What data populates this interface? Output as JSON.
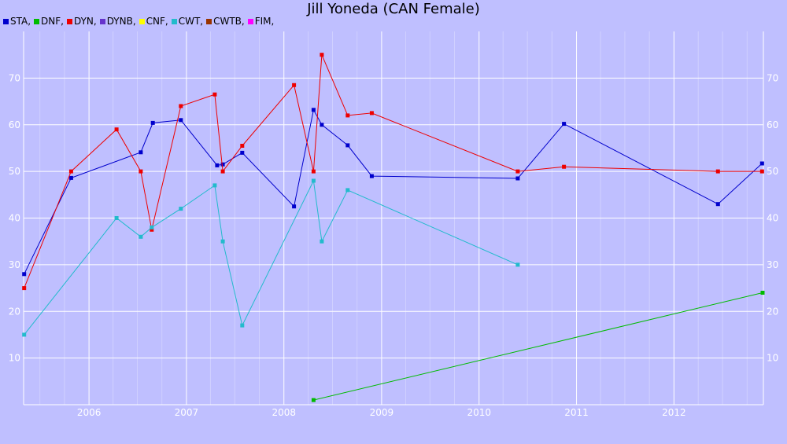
{
  "chart_data": {
    "type": "line",
    "title": "Jill Yoneda (CAN Female)",
    "xlabel": "",
    "ylabel": "",
    "x_ticks": [
      "2006",
      "2007",
      "2008",
      "2009",
      "2010",
      "2011",
      "2012"
    ],
    "y_ticks": [
      "10",
      "20",
      "30",
      "40",
      "50",
      "60",
      "70"
    ],
    "xlim": [
      "2005-05-01",
      "2012-12-01"
    ],
    "ylim": [
      0,
      80
    ],
    "grid": true,
    "legend_position": "top-left",
    "legend": [
      {
        "label": "STA,",
        "color": "#0000cc"
      },
      {
        "label": "DNF,",
        "color": "#00bb00"
      },
      {
        "label": "DYN,",
        "color": "#ee0000"
      },
      {
        "label": "DYNB,",
        "color": "#6633cc"
      },
      {
        "label": "CNF,",
        "color": "#ffff00"
      },
      {
        "label": "CWT,",
        "color": "#22bbcc"
      },
      {
        "label": "CWTB,",
        "color": "#993300"
      },
      {
        "label": "FIM,",
        "color": "#ff00ff"
      }
    ],
    "series": [
      {
        "name": "STA",
        "color": "#0000cc",
        "points": [
          {
            "x": "2005-05-03",
            "y": 28
          },
          {
            "x": "2005-10-26",
            "y": 48.6
          },
          {
            "x": "2006-07-14",
            "y": 54.1
          },
          {
            "x": "2006-08-28",
            "y": 60.4
          },
          {
            "x": "2006-12-11",
            "y": 61
          },
          {
            "x": "2007-04-26",
            "y": 51.3
          },
          {
            "x": "2007-05-17",
            "y": 51.5
          },
          {
            "x": "2007-07-29",
            "y": 54
          },
          {
            "x": "2008-02-08",
            "y": 42.5
          },
          {
            "x": "2008-04-21",
            "y": 63.2
          },
          {
            "x": "2008-05-22",
            "y": 60
          },
          {
            "x": "2008-08-27",
            "y": 55.6
          },
          {
            "x": "2008-11-25",
            "y": 49
          },
          {
            "x": "2010-05-26",
            "y": 48.5
          },
          {
            "x": "2010-11-15",
            "y": 60.2
          },
          {
            "x": "2012-06-14",
            "y": 43
          },
          {
            "x": "2012-11-26",
            "y": 51.7
          }
        ]
      },
      {
        "name": "DNF",
        "color": "#00bb00",
        "points": [
          {
            "x": "2008-04-21",
            "y": 1
          },
          {
            "x": "2012-11-28",
            "y": 24
          }
        ]
      },
      {
        "name": "DYN",
        "color": "#ee0000",
        "points": [
          {
            "x": "2005-05-03",
            "y": 25
          },
          {
            "x": "2005-10-26",
            "y": 50
          },
          {
            "x": "2006-04-14",
            "y": 59
          },
          {
            "x": "2006-07-14",
            "y": 50
          },
          {
            "x": "2006-08-24",
            "y": 37.5
          },
          {
            "x": "2006-12-11",
            "y": 64
          },
          {
            "x": "2007-04-17",
            "y": 66.5
          },
          {
            "x": "2007-05-17",
            "y": 50
          },
          {
            "x": "2007-07-29",
            "y": 55.5
          },
          {
            "x": "2008-02-08",
            "y": 68.5
          },
          {
            "x": "2008-04-21",
            "y": 50
          },
          {
            "x": "2008-05-22",
            "y": 75
          },
          {
            "x": "2008-08-27",
            "y": 62
          },
          {
            "x": "2008-11-25",
            "y": 62.5
          },
          {
            "x": "2010-05-26",
            "y": 50
          },
          {
            "x": "2010-11-15",
            "y": 51
          },
          {
            "x": "2012-06-14",
            "y": 50
          },
          {
            "x": "2012-11-26",
            "y": 50
          }
        ]
      },
      {
        "name": "CWT",
        "color": "#22bbcc",
        "points": [
          {
            "x": "2005-05-03",
            "y": 15
          },
          {
            "x": "2006-04-14",
            "y": 40
          },
          {
            "x": "2006-07-14",
            "y": 36
          },
          {
            "x": "2006-08-24",
            "y": 38
          },
          {
            "x": "2006-12-11",
            "y": 42
          },
          {
            "x": "2007-04-17",
            "y": 47
          },
          {
            "x": "2007-05-17",
            "y": 35
          },
          {
            "x": "2007-07-29",
            "y": 17
          },
          {
            "x": "2008-04-21",
            "y": 48
          },
          {
            "x": "2008-05-22",
            "y": 35
          },
          {
            "x": "2008-08-27",
            "y": 46
          },
          {
            "x": "2010-05-26",
            "y": 30
          }
        ]
      }
    ]
  }
}
